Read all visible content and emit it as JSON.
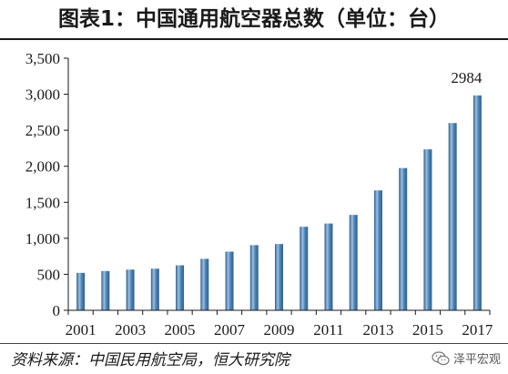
{
  "header": {
    "title": "图表1：中国通用航空器总数（单位：台）"
  },
  "footer": {
    "source": "资料来源：中国民用航空局，恒大研究院",
    "watermark": "泽平宏观",
    "watermark_icon": "wechat-icon"
  },
  "colors": {
    "bar_fill": "#4f86b9",
    "bar_highlight": "#9cc0e0",
    "bar_shadow": "#2f5f8f",
    "axis": "#1a1a1a"
  },
  "chart_data": {
    "type": "bar",
    "title": "图表1：中国通用航空器总数（单位：台）",
    "xlabel": "",
    "ylabel": "",
    "ylim": [
      0,
      3500
    ],
    "yticks": [
      0,
      500,
      1000,
      1500,
      2000,
      2500,
      3000,
      3500
    ],
    "ytick_labels": [
      "0",
      "500",
      "1,000",
      "1,500",
      "2,000",
      "2,500",
      "3,000",
      "3,500"
    ],
    "categories": [
      "2001",
      "2002",
      "2003",
      "2004",
      "2005",
      "2006",
      "2007",
      "2008",
      "2009",
      "2010",
      "2011",
      "2012",
      "2013",
      "2014",
      "2015",
      "2016",
      "2017"
    ],
    "xtick_labels_shown": [
      "2001",
      "2003",
      "2005",
      "2007",
      "2009",
      "2011",
      "2013",
      "2015",
      "2017"
    ],
    "values": [
      520,
      545,
      565,
      578,
      625,
      715,
      815,
      905,
      920,
      1160,
      1205,
      1325,
      1665,
      1975,
      2235,
      2600,
      2984
    ],
    "data_labels": [
      {
        "category": "2017",
        "text": "2984"
      }
    ],
    "grid": false,
    "legend": "none"
  }
}
